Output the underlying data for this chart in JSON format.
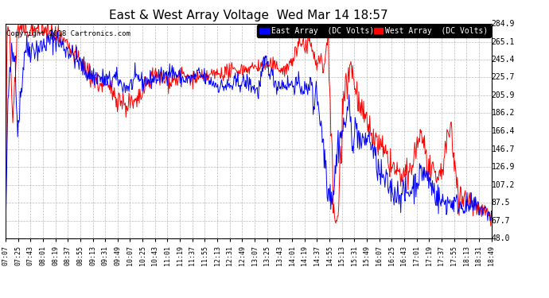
{
  "title": "East & West Array Voltage  Wed Mar 14 18:57",
  "copyright": "Copyright 2018 Cartronics.com",
  "legend_east": "East Array  (DC Volts)",
  "legend_west": "West Array  (DC Volts)",
  "east_color": "#0000ff",
  "west_color": "#ff0000",
  "background_color": "#ffffff",
  "plot_bg_color": "#ffffff",
  "grid_color": "#aaaaaa",
  "ylim": [
    48.0,
    284.9
  ],
  "yticks": [
    48.0,
    67.7,
    87.5,
    107.2,
    126.9,
    146.7,
    166.4,
    186.2,
    205.9,
    225.7,
    245.4,
    265.1,
    284.9
  ],
  "xtick_labels": [
    "07:07",
    "07:25",
    "07:43",
    "08:01",
    "08:19",
    "08:37",
    "08:55",
    "09:13",
    "09:31",
    "09:49",
    "10:07",
    "10:25",
    "10:43",
    "11:01",
    "11:19",
    "11:37",
    "11:55",
    "12:13",
    "12:31",
    "12:49",
    "13:07",
    "13:25",
    "13:43",
    "14:01",
    "14:19",
    "14:37",
    "14:55",
    "15:13",
    "15:31",
    "15:49",
    "16:07",
    "16:25",
    "16:43",
    "17:01",
    "17:19",
    "17:37",
    "17:55",
    "18:13",
    "18:31",
    "18:49"
  ]
}
